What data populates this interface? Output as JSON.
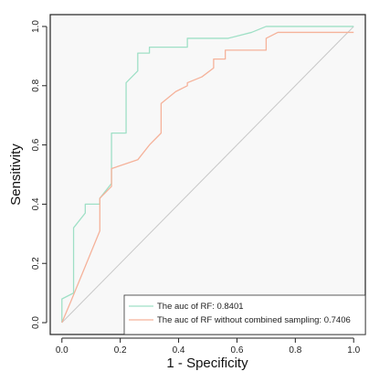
{
  "chart_data": {
    "type": "line",
    "title": "",
    "xlabel": "1 - Specificity",
    "ylabel": "Sensitivity",
    "xlim": [
      -0.04,
      1.04
    ],
    "ylim": [
      -0.04,
      1.04
    ],
    "x_ticks": [
      "0.0",
      "0.2",
      "0.4",
      "0.6",
      "0.8",
      "1.0"
    ],
    "y_ticks": [
      "0.0",
      "0.2",
      "0.4",
      "0.6",
      "0.8",
      "1.0"
    ],
    "grid": false,
    "legend_position": "bottom-right",
    "reference_line": {
      "x": [
        0,
        1
      ],
      "y": [
        0,
        1
      ],
      "color": "#c8c8c8"
    },
    "series": [
      {
        "name": "The auc of RF: 0.8401",
        "color": "#9fe0c6",
        "x": [
          0.0,
          0.0,
          0.04,
          0.04,
          0.08,
          0.08,
          0.13,
          0.13,
          0.17,
          0.17,
          0.22,
          0.22,
          0.26,
          0.26,
          0.3,
          0.3,
          0.43,
          0.43,
          0.52,
          0.57,
          0.65,
          0.7,
          1.0
        ],
        "y": [
          0.0,
          0.08,
          0.1,
          0.32,
          0.37,
          0.4,
          0.4,
          0.42,
          0.47,
          0.64,
          0.64,
          0.81,
          0.85,
          0.91,
          0.91,
          0.93,
          0.93,
          0.96,
          0.96,
          0.96,
          0.98,
          1.0,
          1.0
        ]
      },
      {
        "name": "The auc of RF without combined sampling: 0.7406",
        "color": "#f5b29a",
        "x": [
          0.0,
          0.03,
          0.13,
          0.13,
          0.17,
          0.17,
          0.26,
          0.3,
          0.34,
          0.34,
          0.39,
          0.43,
          0.43,
          0.48,
          0.52,
          0.52,
          0.56,
          0.56,
          0.7,
          0.7,
          0.74,
          1.0
        ],
        "y": [
          0.0,
          0.07,
          0.31,
          0.42,
          0.46,
          0.52,
          0.55,
          0.6,
          0.64,
          0.74,
          0.78,
          0.8,
          0.81,
          0.83,
          0.86,
          0.89,
          0.89,
          0.92,
          0.92,
          0.96,
          0.98,
          0.98
        ]
      }
    ]
  }
}
